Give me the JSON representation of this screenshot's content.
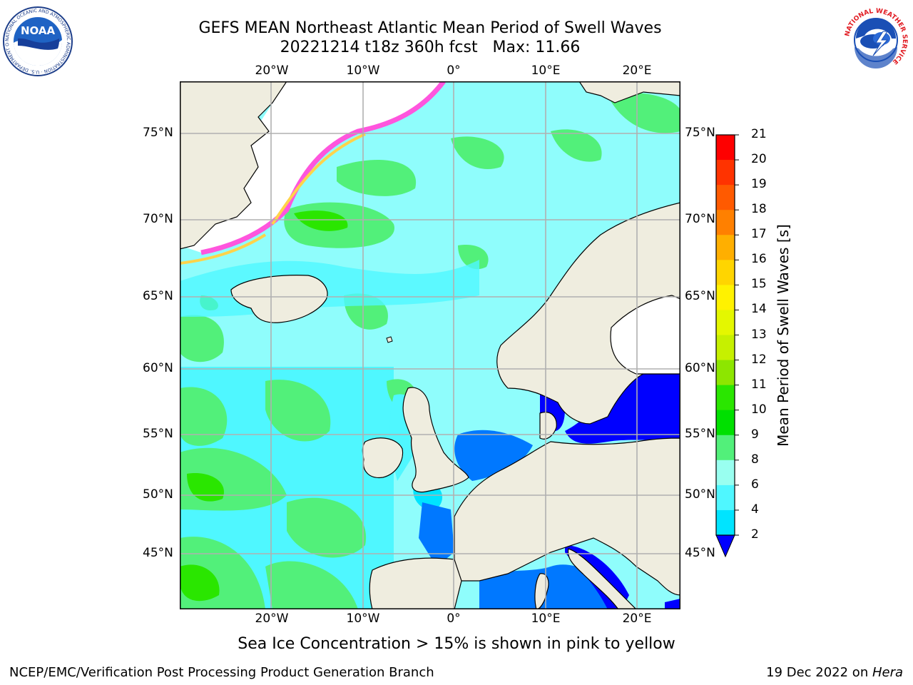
{
  "header": {
    "title_line1": "GEFS MEAN Northeast Atlantic Mean Period of Swell Waves",
    "title_line2": "20221214 t18z 360h fcst   Max: 11.66"
  },
  "logos": {
    "noaa": {
      "text": "NOAA",
      "ring_text": "NATIONAL OCEANIC AND ATMOSPHERIC ADMINISTRATION · U.S. DEPARTMENT OF COMMERCE",
      "icon": "noaa-logo"
    },
    "nws": {
      "ring_text": "NATIONAL WEATHER SERVICE",
      "icon": "nws-logo"
    }
  },
  "map": {
    "lon_labels": [
      "20°W",
      "10°W",
      "0°",
      "10°E",
      "20°E"
    ],
    "lat_labels": [
      "75°N",
      "70°N",
      "65°N",
      "60°N",
      "55°N",
      "50°N",
      "45°N"
    ],
    "colors": {
      "land": "#efeddf",
      "ice_pink": "#ff55dd",
      "ice_yellow": "#ffd34a",
      "grid": "#b0b0b0",
      "coast": "#000000"
    }
  },
  "colorbar": {
    "label": "Mean Period of Swell Waves [s]",
    "ticks": [
      "21",
      "20",
      "19",
      "18",
      "17",
      "16",
      "15",
      "14",
      "13",
      "12",
      "11",
      "10",
      "9",
      "8",
      "6",
      "4",
      "2"
    ],
    "colors_top_to_bottom": [
      "#fe0000",
      "#ff3300",
      "#ff5a00",
      "#ff8000",
      "#ffaf00",
      "#ffd500",
      "#fff200",
      "#e4f700",
      "#c6f000",
      "#8de600",
      "#2ae600",
      "#00e000",
      "#52f07a",
      "#99fff0",
      "#4ff7ff",
      "#00e4ff",
      "#0078ff"
    ],
    "under_color": "#0000ff"
  },
  "caption": "Sea Ice Concentration > 15% is shown in pink to yellow",
  "footer": {
    "left": "NCEP/EMC/Verification Post Processing Product Generation Branch",
    "right_date": "19 Dec 2022 on ",
    "right_host": "Hera"
  }
}
